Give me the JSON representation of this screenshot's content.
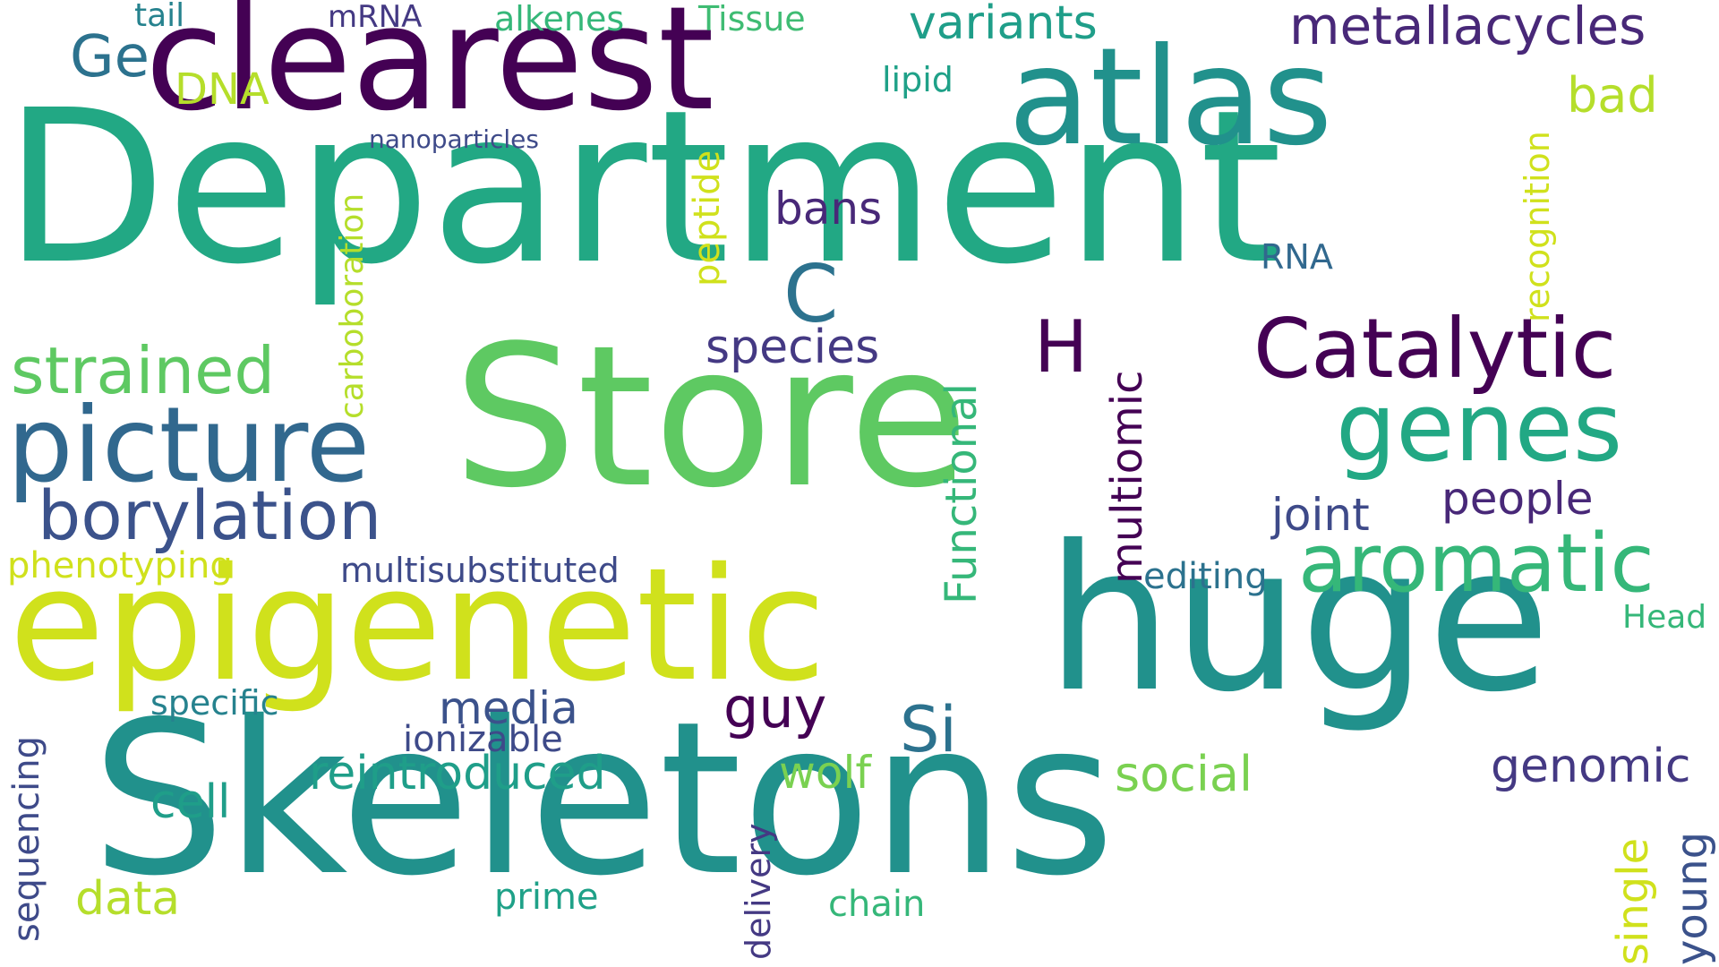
{
  "words": [
    {
      "text": "Department",
      "color": "#22a884"
    },
    {
      "text": "Store",
      "color": "#5ec962"
    },
    {
      "text": "Skeletons",
      "color": "#21918c"
    },
    {
      "text": "huge",
      "color": "#21918c"
    },
    {
      "text": "epigenetic",
      "color": "#d0e11c"
    },
    {
      "text": "clearest",
      "color": "#440154"
    },
    {
      "text": "atlas",
      "color": "#21918c"
    },
    {
      "text": "picture",
      "color": "#31688e"
    },
    {
      "text": "Catalytic",
      "color": "#440154"
    },
    {
      "text": "genes",
      "color": "#22a884"
    },
    {
      "text": "aromatic",
      "color": "#35b779"
    },
    {
      "text": "borylation",
      "color": "#3b528b"
    },
    {
      "text": "strained",
      "color": "#5ec962"
    },
    {
      "text": "metallacycles",
      "color": "#482878"
    },
    {
      "text": "variants",
      "color": "#1f9e89"
    },
    {
      "text": "Ge",
      "color": "#2c728e"
    },
    {
      "text": "DNA",
      "color": "#b5de2b"
    },
    {
      "text": "tail",
      "color": "#26828e"
    },
    {
      "text": "mRNA",
      "color": "#443983"
    },
    {
      "text": "alkenes",
      "color": "#35b779"
    },
    {
      "text": "Tissue",
      "color": "#3fbc73"
    },
    {
      "text": "lipid",
      "color": "#1fa188"
    },
    {
      "text": "nanoparticles",
      "color": "#3e4a89"
    },
    {
      "text": "bad",
      "color": "#b5de2b"
    },
    {
      "text": "recognition",
      "color": "#d0e11c"
    },
    {
      "text": "bans",
      "color": "#482878"
    },
    {
      "text": "RNA",
      "color": "#31688e"
    },
    {
      "text": "C",
      "color": "#2c728e"
    },
    {
      "text": "H",
      "color": "#440154"
    },
    {
      "text": "peptide",
      "color": "#d0e11c"
    },
    {
      "text": "carboboration",
      "color": "#b5de2b"
    },
    {
      "text": "species",
      "color": "#443983"
    },
    {
      "text": "Functional",
      "color": "#35b779"
    },
    {
      "text": "multiomic",
      "color": "#440154"
    },
    {
      "text": "joint",
      "color": "#3e4a89"
    },
    {
      "text": "people",
      "color": "#482878"
    },
    {
      "text": "editing",
      "color": "#2c728e"
    },
    {
      "text": "Head",
      "color": "#35b779"
    },
    {
      "text": "phenotyping",
      "color": "#d0e11c"
    },
    {
      "text": "multisubstituted",
      "color": "#3e4a89"
    },
    {
      "text": "specific",
      "color": "#26828e"
    },
    {
      "text": "media",
      "color": "#3b528b"
    },
    {
      "text": "guy",
      "color": "#440154"
    },
    {
      "text": "Si",
      "color": "#2c728e"
    },
    {
      "text": "ionizable",
      "color": "#3e4a89"
    },
    {
      "text": "reintroduced",
      "color": "#1f9e89"
    },
    {
      "text": "wolf",
      "color": "#7ad151"
    },
    {
      "text": "social",
      "color": "#7ad151"
    },
    {
      "text": "genomic",
      "color": "#443983"
    },
    {
      "text": "cell",
      "color": "#1f9e89"
    },
    {
      "text": "sequencing",
      "color": "#3e4a89"
    },
    {
      "text": "data",
      "color": "#b5de2b"
    },
    {
      "text": "prime",
      "color": "#1fa188"
    },
    {
      "text": "delivery",
      "color": "#443983"
    },
    {
      "text": "chain",
      "color": "#35b779"
    },
    {
      "text": "single",
      "color": "#d0e11c"
    },
    {
      "text": "young",
      "color": "#3b528b"
    }
  ]
}
